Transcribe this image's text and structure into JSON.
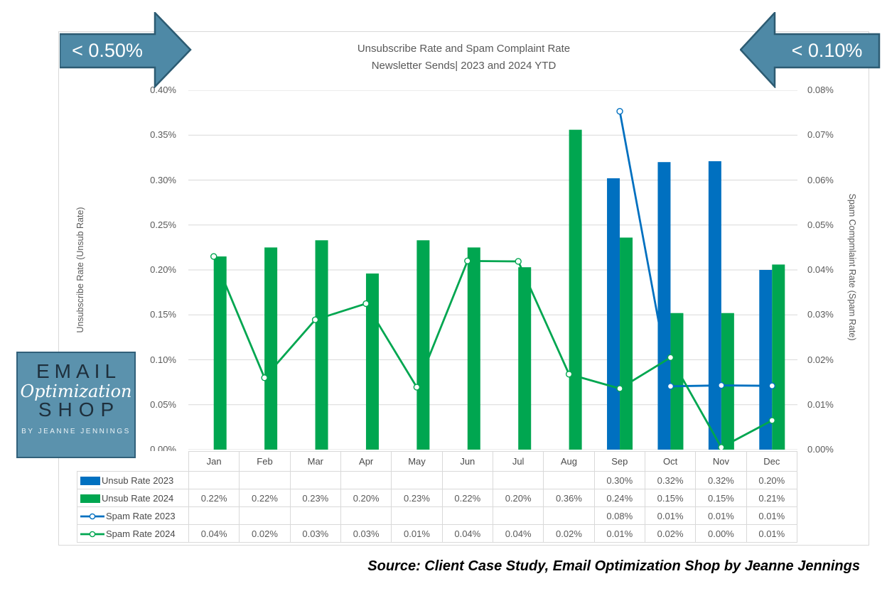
{
  "callouts": {
    "left": "< 0.50%",
    "right": "< 0.10%"
  },
  "chart_data": {
    "type": "bar",
    "subtype": "combo clustered-bar + line, dual y-axis",
    "title": "Unsubscribe Rate and Spam Complaint Rate",
    "subtitle": "Newsletter Sends| 2023 and 2024 YTD",
    "categories": [
      "Jan",
      "Feb",
      "Mar",
      "Apr",
      "May",
      "Jun",
      "Jul",
      "Aug",
      "Sep",
      "Oct",
      "Nov",
      "Dec"
    ],
    "grid": true,
    "legend_position": "table rows left of data table",
    "left_axis": {
      "title": "Unsubscribe Rate (Unsub Rate)",
      "min": 0,
      "max": 0.4,
      "tick_step": 0.05,
      "tick_labels": [
        "0.40%",
        "0.35%",
        "0.30%",
        "0.25%",
        "0.20%",
        "0.15%",
        "0.10%",
        "0.05%",
        "0.00%"
      ]
    },
    "right_axis": {
      "title": "Spam Compmlaint Rate (Spam Rate)",
      "min": 0,
      "max": 0.08,
      "tick_step": 0.01,
      "tick_labels": [
        "0.08%",
        "0.07%",
        "0.06%",
        "0.05%",
        "0.04%",
        "0.03%",
        "0.02%",
        "0.01%",
        "0.00%"
      ]
    },
    "series": [
      {
        "name": "Unsub Rate 2023",
        "type": "bar",
        "axis": "left",
        "color": "#0070C0",
        "values": [
          null,
          null,
          null,
          null,
          null,
          null,
          null,
          null,
          0.3,
          0.32,
          0.32,
          0.2
        ],
        "plot_values": [
          null,
          null,
          null,
          null,
          null,
          null,
          null,
          null,
          0.302,
          0.32,
          0.321,
          0.2
        ],
        "table": [
          "",
          "",
          "",
          "",
          "",
          "",
          "",
          "",
          "0.30%",
          "0.32%",
          "0.32%",
          "0.20%"
        ]
      },
      {
        "name": "Unsub Rate 2024",
        "type": "bar",
        "axis": "left",
        "color": "#00A650",
        "values": [
          0.22,
          0.22,
          0.23,
          0.2,
          0.23,
          0.22,
          0.2,
          0.36,
          0.24,
          0.15,
          0.15,
          0.21
        ],
        "plot_values": [
          0.215,
          0.225,
          0.233,
          0.196,
          0.233,
          0.225,
          0.203,
          0.356,
          0.236,
          0.152,
          0.152,
          0.206
        ],
        "table": [
          "0.22%",
          "0.22%",
          "0.23%",
          "0.20%",
          "0.23%",
          "0.22%",
          "0.20%",
          "0.36%",
          "0.24%",
          "0.15%",
          "0.15%",
          "0.21%"
        ]
      },
      {
        "name": "Spam Rate 2023",
        "type": "line",
        "axis": "right",
        "color": "#0070C0",
        "values": [
          null,
          null,
          null,
          null,
          null,
          null,
          null,
          null,
          0.08,
          0.01,
          0.01,
          0.01
        ],
        "plot_values": [
          null,
          null,
          null,
          null,
          null,
          null,
          null,
          null,
          0.0753,
          0.0141,
          0.0143,
          0.0142
        ],
        "table": [
          "",
          "",
          "",
          "",
          "",
          "",
          "",
          "",
          "0.08%",
          "0.01%",
          "0.01%",
          "0.01%"
        ]
      },
      {
        "name": "Spam Rate 2024",
        "type": "line",
        "axis": "right",
        "color": "#00A650",
        "values": [
          0.04,
          0.02,
          0.03,
          0.03,
          0.01,
          0.04,
          0.04,
          0.02,
          0.01,
          0.02,
          0.0,
          0.01
        ],
        "plot_values": [
          0.043,
          0.016,
          0.0289,
          0.0325,
          0.0139,
          0.042,
          0.0419,
          0.0168,
          0.0136,
          0.0205,
          0.0005,
          0.0065
        ],
        "table": [
          "0.04%",
          "0.02%",
          "0.03%",
          "0.03%",
          "0.01%",
          "0.04%",
          "0.04%",
          "0.02%",
          "0.01%",
          "0.02%",
          "0.00%",
          "0.01%"
        ]
      }
    ]
  },
  "logo": {
    "line1": "EMAIL",
    "line2": "Optimization",
    "line3": "SHOP",
    "line4": "BY JEANNE JENNINGS"
  },
  "source": "Source: Client Case Study, Email Optimization Shop by Jeanne Jennings",
  "colors": {
    "bar_2023": "#0070C0",
    "bar_2024": "#00A650",
    "arrow_fill": "#4E89A6",
    "arrow_stroke": "#2C5B72",
    "grid": "#D9D9D9",
    "text_gray": "#595959",
    "logo_bg": "#5B92AD"
  }
}
